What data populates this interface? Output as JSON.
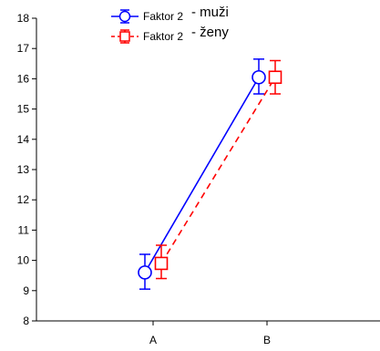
{
  "chart_data": {
    "type": "line",
    "categories": [
      "A",
      "B"
    ],
    "ylim": [
      8,
      18
    ],
    "yticks": [
      8,
      9,
      10,
      11,
      12,
      13,
      14,
      15,
      16,
      17,
      18
    ],
    "grid": false,
    "legend_position": "top-center",
    "series": [
      {
        "name_prefix": "Faktor 2",
        "name_suffix": "- muži",
        "color": "#0000ff",
        "marker": "circle",
        "line_style": "solid",
        "values": [
          9.6,
          16.05
        ],
        "error_low": [
          9.05,
          15.5
        ],
        "error_high": [
          10.2,
          16.65
        ]
      },
      {
        "name_prefix": "Faktor 2",
        "name_suffix": "- ženy",
        "color": "#ff0000",
        "marker": "square",
        "line_style": "dashed",
        "values": [
          9.9,
          16.05
        ],
        "error_low": [
          9.4,
          15.5
        ],
        "error_high": [
          10.5,
          16.6
        ]
      }
    ]
  }
}
